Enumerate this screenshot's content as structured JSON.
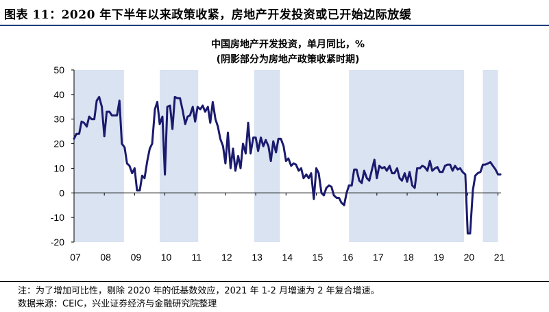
{
  "figure": {
    "label": "图表 11：",
    "heading": "2020 年下半年以来政策收紧，房地产开发投资或已开始边际放缓"
  },
  "footer": {
    "note": "注：为了增加可比性，剔除 2020 年的低基数效应，2021 年 1-2 月增速为 2 年复合增速。",
    "source": "数据来源：CEIC，兴业证券经济与金融研究院整理"
  },
  "colors": {
    "line": "#1a1a6e",
    "shade": "#d9e3f1",
    "rule": "#1f3f7a"
  },
  "chart_data": {
    "type": "line",
    "title": "中国房地产开发投资，单月同比，%",
    "subtitle": "(阴影部分为房地产政策收紧时期)",
    "xlabel": "",
    "ylabel": "",
    "ylim": [
      -20,
      50
    ],
    "yticks": [
      -20,
      -10,
      0,
      10,
      20,
      30,
      40,
      50
    ],
    "xticks": [
      "07",
      "08",
      "09",
      "10",
      "11",
      "12",
      "13",
      "14",
      "15",
      "16",
      "17",
      "18",
      "19",
      "20",
      "21"
    ],
    "grid": false,
    "legend": "none",
    "shaded_periods": [
      {
        "start": 2007.0,
        "end": 2008.65
      },
      {
        "start": 2009.83,
        "end": 2011.1
      },
      {
        "start": 2012.95,
        "end": 2013.8
      },
      {
        "start": 2016.08,
        "end": 2019.88
      },
      {
        "start": 2020.5,
        "end": 2021.0
      }
    ],
    "series": [
      {
        "values": [
          [
            2007.0,
            22
          ],
          [
            2007.08,
            24
          ],
          [
            2007.17,
            24
          ],
          [
            2007.25,
            29
          ],
          [
            2007.33,
            28.5
          ],
          [
            2007.42,
            27
          ],
          [
            2007.5,
            31
          ],
          [
            2007.58,
            30
          ],
          [
            2007.67,
            30
          ],
          [
            2007.75,
            37.5
          ],
          [
            2007.83,
            39
          ],
          [
            2007.92,
            35
          ],
          [
            2008.0,
            23
          ],
          [
            2008.08,
            33
          ],
          [
            2008.17,
            33
          ],
          [
            2008.25,
            31.5
          ],
          [
            2008.33,
            31.5
          ],
          [
            2008.42,
            31.5
          ],
          [
            2008.5,
            37.5
          ],
          [
            2008.58,
            20
          ],
          [
            2008.67,
            18.5
          ],
          [
            2008.75,
            12
          ],
          [
            2008.83,
            11
          ],
          [
            2008.92,
            8
          ],
          [
            2009.0,
            10
          ],
          [
            2009.08,
            1
          ],
          [
            2009.17,
            1
          ],
          [
            2009.25,
            7
          ],
          [
            2009.33,
            6
          ],
          [
            2009.42,
            13
          ],
          [
            2009.5,
            18
          ],
          [
            2009.58,
            20
          ],
          [
            2009.67,
            34
          ],
          [
            2009.75,
            37
          ],
          [
            2009.83,
            28
          ],
          [
            2009.92,
            31
          ],
          [
            2010.0,
            7.5
          ],
          [
            2010.08,
            35
          ],
          [
            2010.17,
            35.5
          ],
          [
            2010.25,
            26
          ],
          [
            2010.33,
            39
          ],
          [
            2010.42,
            38.5
          ],
          [
            2010.5,
            38.5
          ],
          [
            2010.58,
            34
          ],
          [
            2010.67,
            28
          ],
          [
            2010.75,
            31
          ],
          [
            2010.83,
            31.5
          ],
          [
            2010.92,
            35
          ],
          [
            2011.0,
            29
          ],
          [
            2011.08,
            35
          ],
          [
            2011.17,
            34
          ],
          [
            2011.25,
            35.5
          ],
          [
            2011.33,
            33
          ],
          [
            2011.42,
            35
          ],
          [
            2011.5,
            28.5
          ],
          [
            2011.58,
            37
          ],
          [
            2011.67,
            30
          ],
          [
            2011.75,
            27
          ],
          [
            2011.83,
            22
          ],
          [
            2011.92,
            19
          ],
          [
            2012.0,
            12
          ],
          [
            2012.08,
            24.5
          ],
          [
            2012.17,
            10
          ],
          [
            2012.25,
            18
          ],
          [
            2012.33,
            9
          ],
          [
            2012.42,
            15
          ],
          [
            2012.5,
            10
          ],
          [
            2012.58,
            20
          ],
          [
            2012.67,
            16
          ],
          [
            2012.75,
            28.5
          ],
          [
            2012.83,
            16
          ],
          [
            2012.92,
            22.5
          ],
          [
            2013.0,
            22.5
          ],
          [
            2013.08,
            17
          ],
          [
            2013.17,
            22.5
          ],
          [
            2013.25,
            19
          ],
          [
            2013.33,
            21.5
          ],
          [
            2013.42,
            19
          ],
          [
            2013.5,
            13
          ],
          [
            2013.58,
            21
          ],
          [
            2013.67,
            16.5
          ],
          [
            2013.75,
            22
          ],
          [
            2013.83,
            22
          ],
          [
            2013.92,
            19
          ],
          [
            2014.0,
            13
          ],
          [
            2014.08,
            14
          ],
          [
            2014.17,
            11
          ],
          [
            2014.25,
            12
          ],
          [
            2014.33,
            11.5
          ],
          [
            2014.42,
            9
          ],
          [
            2014.5,
            10
          ],
          [
            2014.58,
            6
          ],
          [
            2014.67,
            7.5
          ],
          [
            2014.75,
            6
          ],
          [
            2014.83,
            8
          ],
          [
            2014.92,
            -2.5
          ],
          [
            2015.0,
            10
          ],
          [
            2015.08,
            8
          ],
          [
            2015.17,
            0
          ],
          [
            2015.25,
            -1
          ],
          [
            2015.33,
            2
          ],
          [
            2015.42,
            3
          ],
          [
            2015.5,
            2.5
          ],
          [
            2015.58,
            -1
          ],
          [
            2015.67,
            -2
          ],
          [
            2015.75,
            -2
          ],
          [
            2015.83,
            -4
          ],
          [
            2015.92,
            -5
          ],
          [
            2016.0,
            0
          ],
          [
            2016.08,
            3
          ],
          [
            2016.17,
            3
          ],
          [
            2016.25,
            9.5
          ],
          [
            2016.33,
            9.5
          ],
          [
            2016.42,
            5
          ],
          [
            2016.5,
            4
          ],
          [
            2016.58,
            9
          ],
          [
            2016.67,
            6
          ],
          [
            2016.75,
            5
          ],
          [
            2016.83,
            9
          ],
          [
            2016.92,
            13.5
          ],
          [
            2017.0,
            6
          ],
          [
            2017.08,
            11
          ],
          [
            2017.17,
            10
          ],
          [
            2017.25,
            10.5
          ],
          [
            2017.33,
            9
          ],
          [
            2017.42,
            11
          ],
          [
            2017.5,
            8
          ],
          [
            2017.58,
            8
          ],
          [
            2017.67,
            10
          ],
          [
            2017.75,
            6
          ],
          [
            2017.83,
            5
          ],
          [
            2017.92,
            8
          ],
          [
            2018.0,
            4.5
          ],
          [
            2018.08,
            8.5
          ],
          [
            2018.17,
            3
          ],
          [
            2018.25,
            2
          ],
          [
            2018.33,
            10
          ],
          [
            2018.42,
            10
          ],
          [
            2018.5,
            11
          ],
          [
            2018.58,
            10.5
          ],
          [
            2018.67,
            9
          ],
          [
            2018.75,
            13
          ],
          [
            2018.83,
            9
          ],
          [
            2018.92,
            10
          ],
          [
            2019.0,
            10.5
          ],
          [
            2019.08,
            8.5
          ],
          [
            2019.17,
            8.5
          ],
          [
            2019.25,
            11
          ],
          [
            2019.33,
            11.5
          ],
          [
            2019.42,
            11.5
          ],
          [
            2019.5,
            9
          ],
          [
            2019.58,
            11
          ],
          [
            2019.67,
            9.5
          ],
          [
            2019.75,
            10
          ],
          [
            2019.83,
            8.5
          ],
          [
            2019.92,
            7.5
          ],
          [
            2020.0,
            -16.5
          ],
          [
            2020.08,
            -16.5
          ],
          [
            2020.17,
            1
          ],
          [
            2020.25,
            7
          ],
          [
            2020.33,
            8
          ],
          [
            2020.42,
            8.5
          ],
          [
            2020.5,
            11.5
          ],
          [
            2020.58,
            11.5
          ],
          [
            2020.67,
            12
          ],
          [
            2020.75,
            12.5
          ],
          [
            2020.83,
            11
          ],
          [
            2020.92,
            9.5
          ],
          [
            2021.0,
            7.5
          ],
          [
            2021.08,
            7.5
          ]
        ]
      }
    ]
  }
}
